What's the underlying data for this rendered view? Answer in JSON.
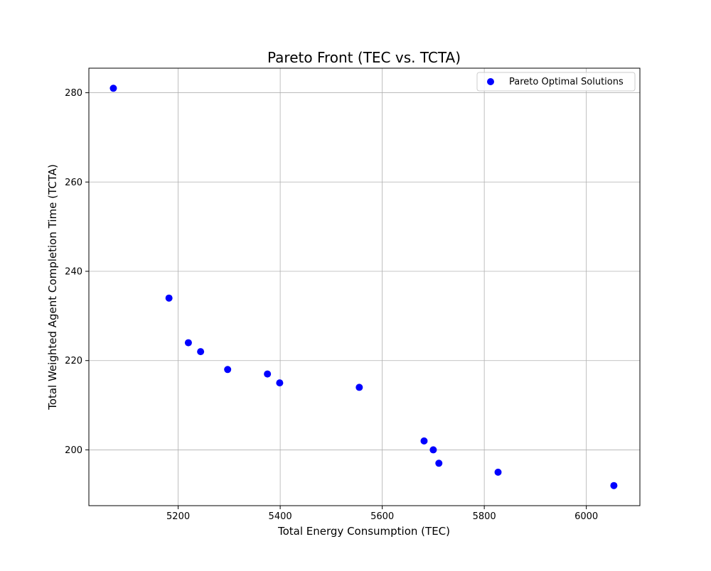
{
  "chart_data": {
    "type": "scatter",
    "title": "Pareto Front (TEC vs. TCTA)",
    "xlabel": "Total Energy Consumption (TEC)",
    "ylabel": "Total Weighted Agent Completion Time (TCTA)",
    "xlim": [
      5025,
      6105
    ],
    "ylim": [
      187.5,
      285.5
    ],
    "xticks": [
      5200,
      5400,
      5600,
      5800,
      6000
    ],
    "yticks": [
      200,
      220,
      240,
      260,
      280
    ],
    "grid": true,
    "legend": "top-right",
    "series": [
      {
        "name": "Pareto Optimal Solutions",
        "color": "#0000ff",
        "marker": "circle",
        "points": [
          {
            "x": 5073,
            "y": 281
          },
          {
            "x": 5182,
            "y": 234
          },
          {
            "x": 5220,
            "y": 224
          },
          {
            "x": 5244,
            "y": 222
          },
          {
            "x": 5297,
            "y": 218
          },
          {
            "x": 5375,
            "y": 217
          },
          {
            "x": 5399,
            "y": 215
          },
          {
            "x": 5555,
            "y": 214
          },
          {
            "x": 5682,
            "y": 202
          },
          {
            "x": 5700,
            "y": 200
          },
          {
            "x": 5711,
            "y": 197
          },
          {
            "x": 5827,
            "y": 195
          },
          {
            "x": 6054,
            "y": 192
          }
        ]
      }
    ]
  }
}
